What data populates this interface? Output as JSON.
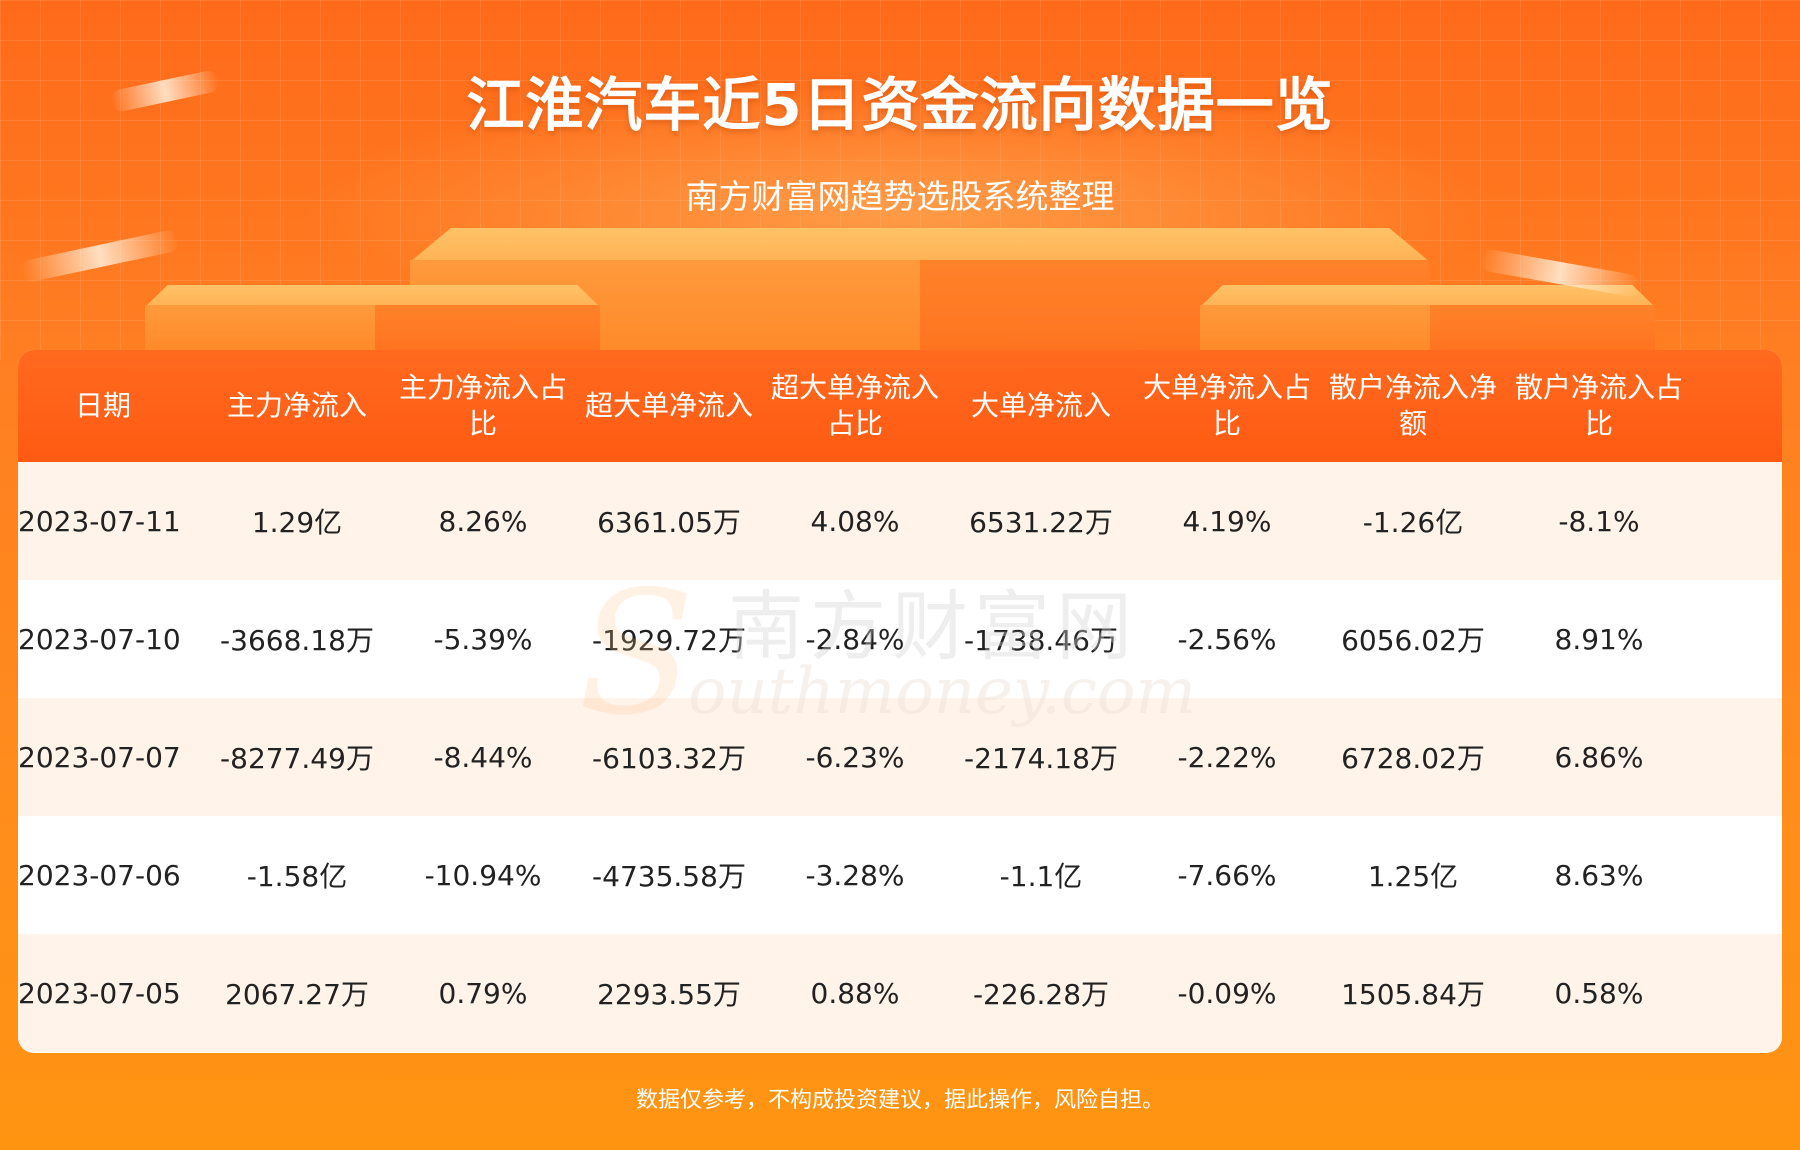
{
  "header": {
    "title": "江淮汽车近5日资金流向数据一览",
    "subtitle": "南方财富网趋势选股系统整理"
  },
  "table": {
    "columns": [
      "日期",
      "主力净流入",
      "主力净流入占比",
      "超大单净流入",
      "超大单净流入占比",
      "大单净流入",
      "大单净流入占比",
      "散户净流入净额",
      "散户净流入占比"
    ],
    "rows": [
      [
        "2023-07-11",
        "1.29亿",
        "8.26%",
        "6361.05万",
        "4.08%",
        "6531.22万",
        "4.19%",
        "-1.26亿",
        "-8.1%"
      ],
      [
        "2023-07-10",
        "-3668.18万",
        "-5.39%",
        "-1929.72万",
        "-2.84%",
        "-1738.46万",
        "-2.56%",
        "6056.02万",
        "8.91%"
      ],
      [
        "2023-07-07",
        "-8277.49万",
        "-8.44%",
        "-6103.32万",
        "-6.23%",
        "-2174.18万",
        "-2.22%",
        "6728.02万",
        "6.86%"
      ],
      [
        "2023-07-06",
        "-1.58亿",
        "-10.94%",
        "-4735.58万",
        "-3.28%",
        "-1.1亿",
        "-7.66%",
        "1.25亿",
        "8.63%"
      ],
      [
        "2023-07-05",
        "2067.27万",
        "0.79%",
        "2293.55万",
        "0.88%",
        "-226.28万",
        "-0.09%",
        "1505.84万",
        "0.58%"
      ]
    ]
  },
  "watermark": {
    "cn": "南方财富网",
    "en": "outhmoney.com",
    "s": "S"
  },
  "footer": {
    "disclaimer": "数据仅参考，不构成投资建议，据此操作，风险自担。"
  },
  "colors": {
    "header_bg": "#ff5a12",
    "alt_row": "#fff3ea",
    "page_bg": "#ff8a1c"
  }
}
